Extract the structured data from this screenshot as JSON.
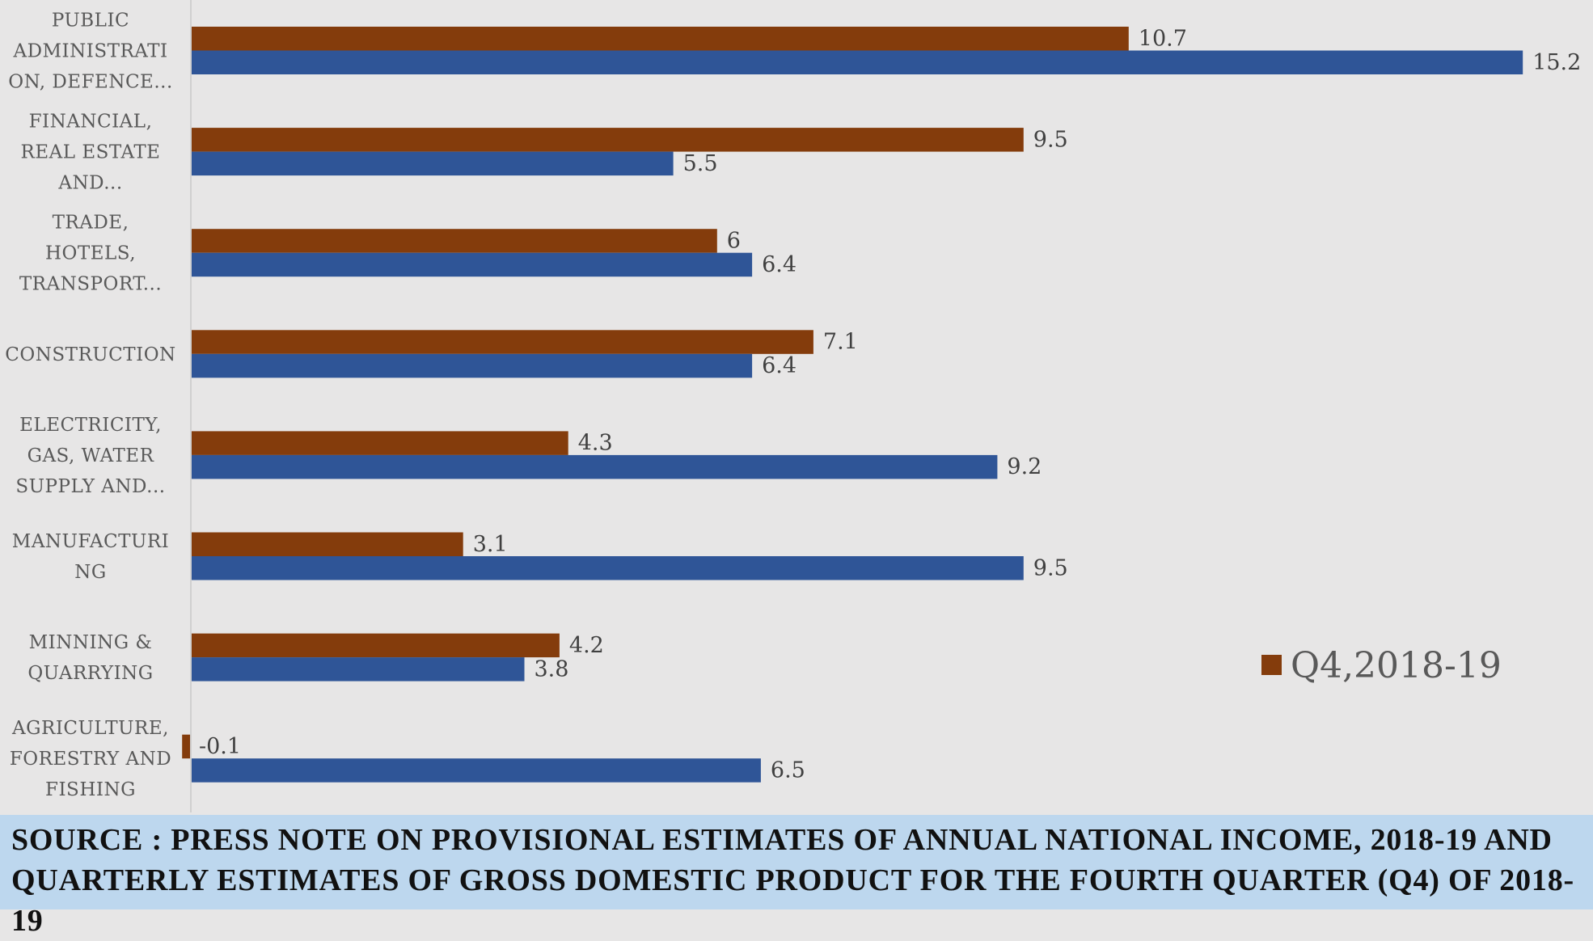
{
  "chart_data": {
    "type": "bar",
    "orientation": "horizontal",
    "title": "",
    "xlabel": "",
    "ylabel": "",
    "categories": [
      [
        "PUBLIC",
        "ADMINISTRATI",
        "ON, DEFENCE..."
      ],
      [
        "FINANCIAL,",
        "REAL ESTATE",
        "AND..."
      ],
      [
        "TRADE,",
        "HOTELS,",
        "TRANSPORT..."
      ],
      [
        "CONSTRUCTION"
      ],
      [
        "ELECTRICITY,",
        "GAS, WATER",
        "SUPPLY AND..."
      ],
      [
        "MANUFACTURI",
        "NG"
      ],
      [
        "MINNING &",
        "QUARRYING"
      ],
      [
        "AGRICULTURE,",
        "FORESTRY AND",
        "FISHING"
      ]
    ],
    "series": [
      {
        "name": "Q4,2018-19",
        "color": "#843C0C",
        "values": [
          10.7,
          9.5,
          6,
          7.1,
          4.3,
          3.1,
          4.2,
          -0.1
        ],
        "show_in_legend": true
      },
      {
        "name": "",
        "color": "#2F5597",
        "values": [
          15.2,
          5.5,
          6.4,
          6.4,
          9.2,
          9.5,
          3.8,
          6.5
        ],
        "show_in_legend": false
      }
    ],
    "xlim": [
      -0.2,
      16
    ],
    "grid": false,
    "data_labels": true,
    "legend_position": "right"
  },
  "footer": {
    "source_line_1": "SOURCE : PRESS NOTE ON PROVISIONAL ESTIMATES OF ANNUAL NATIONAL INCOME, 2018-19 AND",
    "source_line_2": "QUARTERLY ESTIMATES OF GROSS DOMESTIC PRODUCT FOR THE FOURTH QUARTER (Q4) OF 2018-19"
  },
  "colors": {
    "background": "#E7E6E6",
    "footer_background": "#BDD7EE",
    "axis": "#D0D0D0"
  }
}
